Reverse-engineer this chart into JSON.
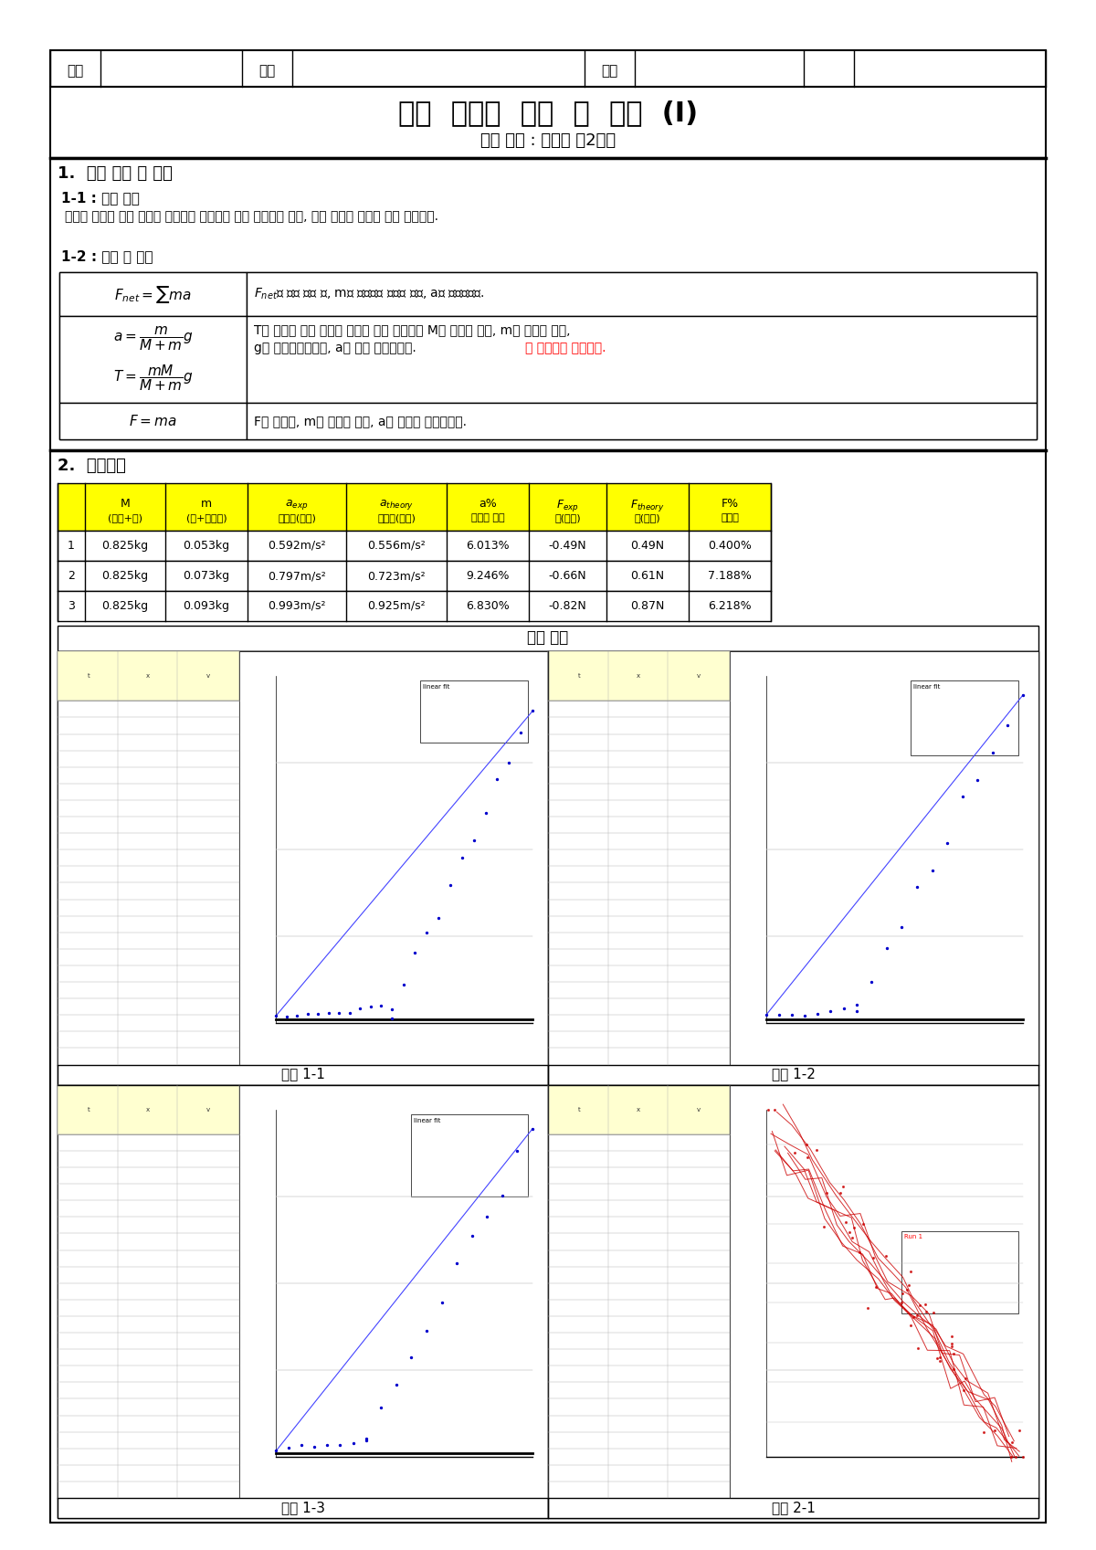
{
  "title_main": "일반  물리학  실험  및  실습  (I)",
  "title_sub": "실험 제목 : 뉴턴의 제2법칙",
  "section1_title": "1.  실험 목적 및 이론",
  "sub1_1": "1-1 : 실험 목적",
  "purpose_text": "카트와 질량이 줄로 연결된 역학계를 이용하여 힘과 가속도의 관계, 힘과 질량의 관계에 대해 알아본다.",
  "sub1_2": "1-2 : 배경 및 이론",
  "section2_title": "2.  실험결과",
  "table_data": [
    [
      "1",
      "0.825kg",
      "0.053kg",
      "0.592m/s²",
      "0.556m/s²",
      "6.013%",
      "-0.49N",
      "0.49N",
      "0.400%"
    ],
    [
      "2",
      "0.825kg",
      "0.073kg",
      "0.797m/s²",
      "0.723m/s²",
      "9.246%",
      "-0.66N",
      "0.61N",
      "7.188%"
    ],
    [
      "3",
      "0.825kg",
      "0.093kg",
      "0.993m/s²",
      "0.925m/s²",
      "6.830%",
      "-0.82N",
      "0.87N",
      "6.218%"
    ]
  ],
  "graph_title": "실험 결과",
  "exp_labels": [
    "실험 1-1",
    "실험 1-2",
    "실험 1-3",
    "실험 2-1"
  ],
  "bg_color": "#ffffff",
  "yellow": "#ffff00",
  "black": "#000000",
  "red_color": "#ff0000",
  "blue_color": "#0000ff"
}
